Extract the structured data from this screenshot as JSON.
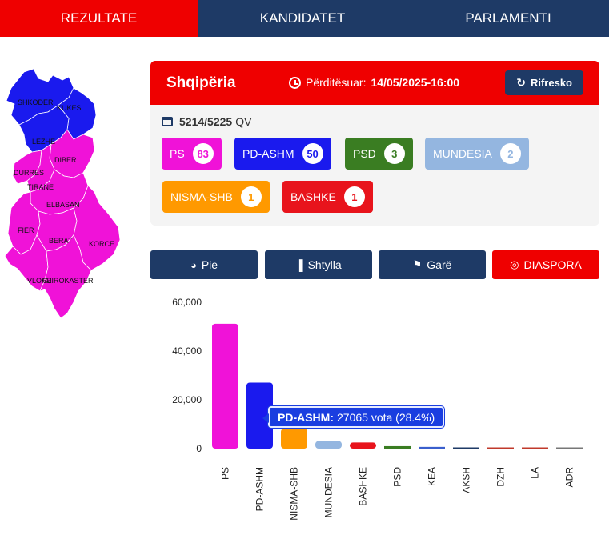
{
  "nav": {
    "tabs": [
      {
        "label": "REZULTATE",
        "active": true
      },
      {
        "label": "KANDIDATET",
        "active": false
      },
      {
        "label": "PARLAMENTI",
        "active": false
      }
    ]
  },
  "map": {
    "regions": [
      {
        "name": "SHKODER",
        "color": "#1a1aee"
      },
      {
        "name": "KUKES",
        "color": "#1a1aee"
      },
      {
        "name": "LEZHE",
        "color": "#1a1aee"
      },
      {
        "name": "DIBER",
        "color": "#f012d8"
      },
      {
        "name": "DURRES",
        "color": "#f012d8"
      },
      {
        "name": "TIRANE",
        "color": "#f012d8"
      },
      {
        "name": "ELBASAN",
        "color": "#f012d8"
      },
      {
        "name": "FIER",
        "color": "#f012d8"
      },
      {
        "name": "BERAT",
        "color": "#f012d8"
      },
      {
        "name": "KORCE",
        "color": "#f012d8"
      },
      {
        "name": "VLORE",
        "color": "#f012d8"
      },
      {
        "name": "GJIROKASTER",
        "color": "#f012d8"
      }
    ]
  },
  "card": {
    "title": "Shqipëria",
    "updated_label": "Përditësuar:",
    "updated_value": "14/05/2025-16:00",
    "refresh_label": "Rifresko",
    "qv_count": "5214/5225",
    "qv_unit": "QV",
    "parties": [
      {
        "name": "PS",
        "seats": "83",
        "color": "#f012d8"
      },
      {
        "name": "PD-ASHM",
        "seats": "50",
        "color": "#1a1aee"
      },
      {
        "name": "PSD",
        "seats": "3",
        "color": "#3a7d22"
      },
      {
        "name": "MUNDESIA",
        "seats": "2",
        "color": "#94b6e0"
      },
      {
        "name": "NISMA-SHB",
        "seats": "1",
        "color": "#ff9900"
      },
      {
        "name": "BASHKE",
        "seats": "1",
        "color": "#e8141c"
      }
    ]
  },
  "chart_buttons": [
    {
      "label": "Pie",
      "icon": "pie-chart-icon",
      "color": "#1e3a66"
    },
    {
      "label": "Shtylla",
      "icon": "bar-chart-icon",
      "color": "#1e3a66"
    },
    {
      "label": "Garë",
      "icon": "race-flag-icon",
      "color": "#1e3a66"
    },
    {
      "label": "DIASPORA",
      "icon": "globe-icon",
      "color": "#ef0000"
    }
  ],
  "chart_data": {
    "type": "bar",
    "categories": [
      "PS",
      "PD-ASHM",
      "NISMA-SHB",
      "MUNDESIA",
      "BASHKE",
      "PSD",
      "KEA",
      "AKSH",
      "DZH",
      "LA",
      "ADR"
    ],
    "values": [
      51200,
      27065,
      8200,
      3100,
      2500,
      1000,
      700,
      450,
      300,
      250,
      50
    ],
    "colors": [
      "#f012d8",
      "#1a1aee",
      "#ff9900",
      "#94b6e0",
      "#e8141c",
      "#3a7d22",
      "#3a5fcd",
      "#1e3a66",
      "#c0392b",
      "#c0392b",
      "#777777"
    ],
    "yticks": [
      "60,000",
      "40,000",
      "20,000",
      "0"
    ],
    "ylim": [
      0,
      60000
    ]
  },
  "tooltip": {
    "party": "PD-ASHM:",
    "text": "27065 vota (28.4%)"
  }
}
